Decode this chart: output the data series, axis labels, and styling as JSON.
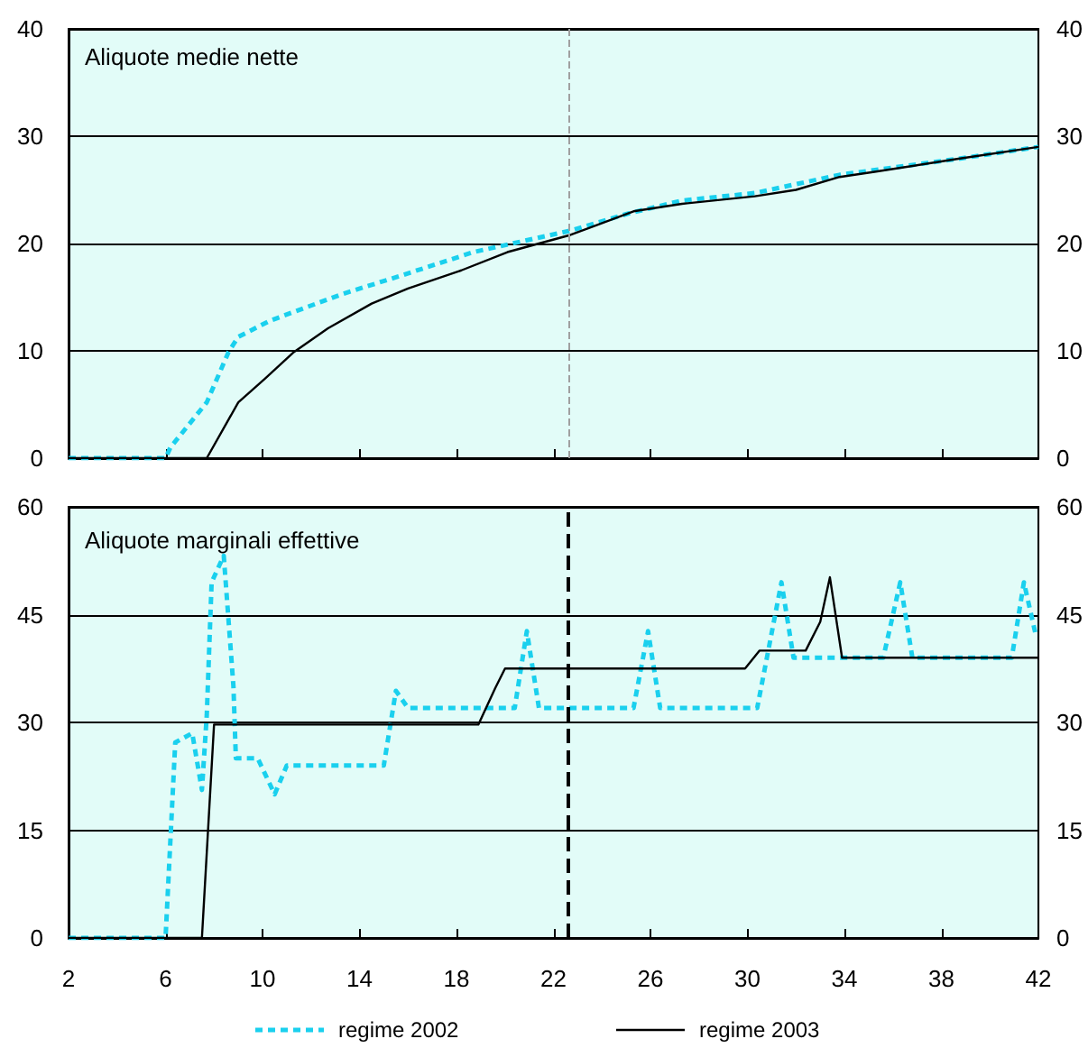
{
  "chart_data": [
    {
      "type": "line",
      "title": "Aliquote medie nette",
      "xlim": [
        2,
        42
      ],
      "xticks": [
        2,
        6,
        10,
        14,
        18,
        22,
        26,
        30,
        34,
        38,
        42
      ],
      "ylim": [
        0,
        40
      ],
      "yticks": [
        0,
        10,
        20,
        30,
        40
      ],
      "y2lim": [
        0,
        40
      ],
      "y2ticks": [
        0,
        10,
        20,
        30,
        40
      ],
      "tick_labels": "y",
      "grid": "y",
      "legend": false,
      "marker": "none",
      "ref_lines": [
        {
          "axis": "x",
          "value": 22.6,
          "label": null,
          "color": "#a0a0a0",
          "line_style": "dashed"
        }
      ],
      "series": [
        {
          "color": "#1ad0ee",
          "line_style": "dotted",
          "x": [
            2,
            6,
            6.2,
            7.7,
            8.6,
            9.0,
            10.3,
            13.3,
            15.7,
            18.7,
            22.7,
            25.1,
            27.3,
            30.3,
            33.8,
            38.7,
            42
          ],
          "values": [
            0,
            0,
            1,
            5.2,
            9.9,
            11.3,
            12.8,
            15.3,
            17,
            19.2,
            21.2,
            22.8,
            24,
            24.7,
            26.4,
            27.9,
            29
          ]
        },
        {
          "color": "#000000",
          "line_style": "solid",
          "x": [
            2,
            7.7,
            9.0,
            10.1,
            11.3,
            12.7,
            14.5,
            16,
            18.2,
            20.1,
            22.7,
            25.3,
            27.3,
            30.3,
            32,
            33.8,
            35.3,
            38.7,
            42
          ],
          "values": [
            0,
            0,
            5.2,
            7.4,
            9.9,
            12.1,
            14.4,
            15.8,
            17.5,
            19.2,
            20.8,
            23,
            23.7,
            24.4,
            25,
            26.2,
            26.7,
            27.9,
            29
          ]
        }
      ]
    },
    {
      "type": "line",
      "title": "Aliquote marginali effettive",
      "xlim": [
        2,
        42
      ],
      "xticks": [
        2,
        6,
        10,
        14,
        18,
        22,
        26,
        30,
        34,
        38,
        42
      ],
      "ylim": [
        0,
        60
      ],
      "yticks": [
        0,
        15,
        30,
        45,
        60
      ],
      "y2lim": [
        0,
        60
      ],
      "y2ticks": [
        0,
        15,
        30,
        45,
        60
      ],
      "grid": "y",
      "legend": "bottom",
      "marker": "none",
      "ref_lines": [
        {
          "axis": "x",
          "value": 22.6,
          "label": null,
          "color": "#000000",
          "line_style": "dashed"
        }
      ],
      "series": [
        {
          "name": "regime 2002",
          "color": "#1ad0ee",
          "line_style": "dotted",
          "x": [
            2,
            6,
            6.4,
            7.1,
            7.5,
            7.7,
            7.9,
            8.4,
            8.8,
            8.9,
            9.8,
            10.5,
            11,
            15,
            15.5,
            16,
            20.4,
            20.9,
            21.4,
            25.3,
            25.9,
            26.4,
            30.4,
            31.4,
            31.9,
            35.6,
            36.3,
            36.8,
            40.9,
            41.4,
            41.9
          ],
          "values": [
            0,
            0,
            27.2,
            28.5,
            20.6,
            31,
            49.5,
            53.2,
            35,
            25,
            25,
            20,
            24,
            24,
            34.4,
            32,
            32,
            42.7,
            32,
            32,
            42.7,
            32,
            32,
            49.5,
            39,
            39,
            49.5,
            39,
            39,
            49.5,
            42
          ]
        },
        {
          "name": "regime 2003",
          "color": "#000000",
          "line_style": "solid",
          "x": [
            2,
            7.5,
            8.0,
            18.9,
            19.6,
            20,
            29.9,
            30.5,
            32.4,
            33,
            33.4,
            33.9,
            42
          ],
          "values": [
            0,
            0,
            29.7,
            29.7,
            34.8,
            37.5,
            37.5,
            40,
            40,
            44,
            50.2,
            39,
            39
          ]
        }
      ]
    }
  ]
}
